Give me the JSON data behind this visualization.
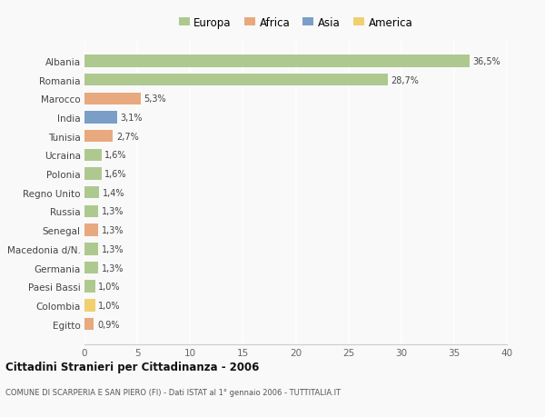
{
  "countries": [
    "Albania",
    "Romania",
    "Marocco",
    "India",
    "Tunisia",
    "Ucraina",
    "Polonia",
    "Regno Unito",
    "Russia",
    "Senegal",
    "Macedonia d/N.",
    "Germania",
    "Paesi Bassi",
    "Colombia",
    "Egitto"
  ],
  "values": [
    36.5,
    28.7,
    5.3,
    3.1,
    2.7,
    1.6,
    1.6,
    1.4,
    1.3,
    1.3,
    1.3,
    1.3,
    1.0,
    1.0,
    0.9
  ],
  "labels": [
    "36,5%",
    "28,7%",
    "5,3%",
    "3,1%",
    "2,7%",
    "1,6%",
    "1,6%",
    "1,4%",
    "1,3%",
    "1,3%",
    "1,3%",
    "1,3%",
    "1,0%",
    "1,0%",
    "0,9%"
  ],
  "continents": [
    "Europa",
    "Europa",
    "Africa",
    "Asia",
    "Africa",
    "Europa",
    "Europa",
    "Europa",
    "Europa",
    "Africa",
    "Europa",
    "Europa",
    "Europa",
    "America",
    "Africa"
  ],
  "colors": {
    "Europa": "#aec98f",
    "Africa": "#e8a97e",
    "Asia": "#7b9ec7",
    "America": "#f0d070"
  },
  "xlim": [
    0,
    40
  ],
  "xticks": [
    0,
    5,
    10,
    15,
    20,
    25,
    30,
    35,
    40
  ],
  "title_bold": "Cittadini Stranieri per Cittadinanza - 2006",
  "subtitle": "COMUNE DI SCARPERIA E SAN PIERO (FI) - Dati ISTAT al 1° gennaio 2006 - TUTTITALIA.IT",
  "bg_color": "#f9f9f9",
  "grid_color": "#ffffff",
  "bar_height": 0.65,
  "legend_order": [
    "Europa",
    "Africa",
    "Asia",
    "America"
  ]
}
